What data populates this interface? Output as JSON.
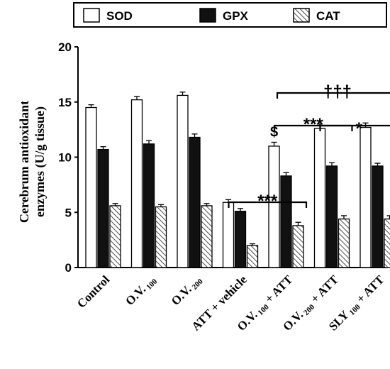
{
  "chart_data": {
    "type": "bar",
    "ylabel": [
      "Cerebrum antioxidant",
      "enzymes (U/g tissue)"
    ],
    "ylim": [
      0,
      20
    ],
    "yticks": [
      0,
      5,
      10,
      15,
      20
    ],
    "categories": [
      {
        "label": "Control",
        "sub": ""
      },
      {
        "label": "O.V.",
        "sub": "100"
      },
      {
        "label": "O.V.",
        "sub": "200"
      },
      {
        "label": "ATT + vehicle",
        "sub": ""
      },
      {
        "label": "O.V.",
        "sub": "100",
        "suffix": " + ATT"
      },
      {
        "label": "O.V.",
        "sub": "200",
        "suffix": " + ATT"
      },
      {
        "label": "SLY",
        "sub": "100",
        "suffix": " + ATT"
      }
    ],
    "series": [
      {
        "name": "SOD",
        "fill": "#ffffff",
        "pattern": "none",
        "values": [
          14.5,
          15.2,
          15.6,
          5.9,
          11.0,
          12.6,
          12.7
        ],
        "errors": [
          0.25,
          0.3,
          0.3,
          0.25,
          0.35,
          0.4,
          0.4
        ]
      },
      {
        "name": "GPX",
        "fill": "#111111",
        "pattern": "none",
        "values": [
          10.7,
          11.2,
          11.8,
          5.1,
          8.3,
          9.2,
          9.2
        ],
        "errors": [
          0.25,
          0.3,
          0.3,
          0.25,
          0.3,
          0.3,
          0.25
        ]
      },
      {
        "name": "CAT",
        "fill": "#ffffff",
        "pattern": "diagonal",
        "values": [
          5.6,
          5.5,
          5.6,
          2.0,
          3.8,
          4.4,
          4.4
        ],
        "errors": [
          0.2,
          0.2,
          0.2,
          0.15,
          0.3,
          0.3,
          0.3
        ]
      }
    ],
    "legend_position": "top",
    "annotations": [
      {
        "text": "***",
        "from_group": 3,
        "to_group": 4
      },
      {
        "text": "***",
        "from_group": 4,
        "to_group": 5
      },
      {
        "text": "*",
        "from_group": 5,
        "to_group": 6
      },
      {
        "text": "†††",
        "from_group": 4,
        "to_group": 6
      },
      {
        "text": "$",
        "group": 4
      }
    ]
  }
}
